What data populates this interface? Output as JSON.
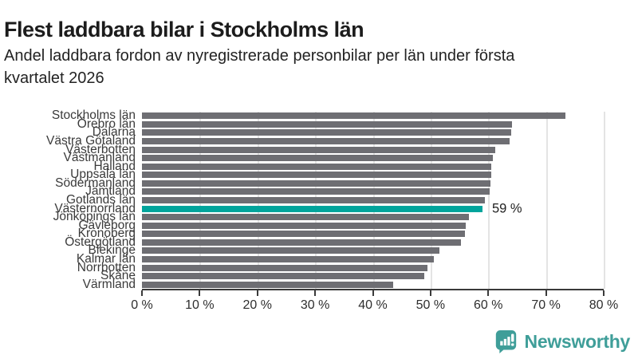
{
  "header": {
    "title": "Flest laddbara bilar i Stockholms län",
    "subtitle_lines": [
      "Andel laddbara fordon av nyregistrerade personbilar per län under första",
      "kvartalet 2026"
    ]
  },
  "chart_data": {
    "type": "bar",
    "orientation": "horizontal",
    "title": "Flest laddbara bilar i Stockholms län",
    "subtitle": "Andel laddbara fordon av nyregistrerade personbilar per län under första kvartalet 2026",
    "categories": [
      "Stockholms län",
      "Örebro län",
      "Dalarna",
      "Västra Götaland",
      "Västerbotten",
      "Västmanland",
      "Halland",
      "Uppsala län",
      "Södermanland",
      "Jämtland",
      "Gotlands län",
      "Västernorrland",
      "Jönköpings län",
      "Gävleborg",
      "Kronoberg",
      "Östergötland",
      "Blekinge",
      "Kalmar län",
      "Norrbotten",
      "Skåne",
      "Värmland"
    ],
    "values": [
      73.3,
      64.1,
      64.0,
      63.7,
      61.2,
      60.8,
      60.5,
      60.5,
      60.4,
      60.2,
      59.4,
      59.0,
      56.7,
      56.1,
      55.9,
      55.2,
      51.5,
      50.6,
      49.4,
      48.9,
      43.5
    ],
    "unit": "%",
    "xlim": [
      0,
      80
    ],
    "x_tick_labels": [
      "0 %",
      "10 %",
      "20 %",
      "30 %",
      "40 %",
      "50 %",
      "60 %",
      "70 %",
      "80 %"
    ],
    "grid": true,
    "legend": false,
    "highlight": {
      "category": "Västernorrland",
      "index": 11,
      "value": 59,
      "label": "59 %"
    },
    "colors": {
      "bar": "#6e6e73",
      "highlight": "#00a49c",
      "gridline": "#e4e4e4",
      "axis": "#3a3a3a",
      "text": "#3a3a3a"
    }
  },
  "footer": {
    "brand": "Newsworthy",
    "brand_color": "#3f9e99",
    "logo_icon": "newsworthy-chart-bubble-icon"
  }
}
